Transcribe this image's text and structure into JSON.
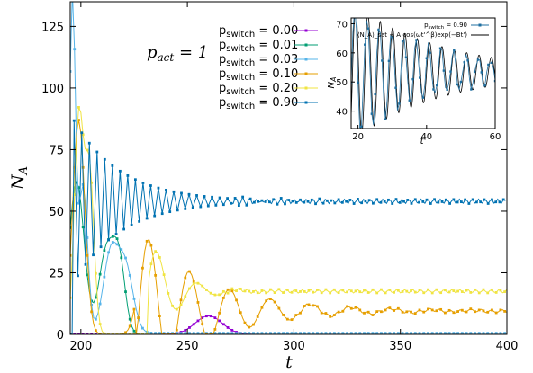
{
  "chart_data": [
    {
      "type": "line",
      "annotation": "p_act = 1",
      "xlabel": "t",
      "ylabel": "N_A",
      "xlim": [
        195,
        400
      ],
      "ylim": [
        0,
        135
      ],
      "x_ticks": [
        200,
        250,
        300,
        350,
        400
      ],
      "y_ticks": [
        0,
        25,
        50,
        75,
        100,
        125
      ],
      "legend_position": "top-center-right",
      "series": [
        {
          "name": "p_switch = 0.00",
          "color": "#9400d3",
          "p": "0.00",
          "model": {
            "type": "wave",
            "baseline": 0,
            "start": 240,
            "center": 260,
            "width": 9,
            "amp": 7.5
          },
          "x": [
            240,
            245,
            250,
            255,
            260,
            265,
            270,
            275,
            280
          ],
          "y": [
            0.2,
            1,
            3.5,
            6.5,
            7.6,
            6.5,
            3.5,
            1,
            0.2
          ]
        },
        {
          "name": "p_switch = 0.01",
          "color": "#009e73",
          "p": "0.01",
          "model": {
            "type": "peaks",
            "baseline": 0,
            "peaks": [
              [
                198,
                5,
                62
              ],
              [
                212,
                5,
                34
              ],
              [
                218,
                4,
                28
              ]
            ]
          },
          "x": [
            198,
            203,
            206,
            212,
            218,
            222,
            230
          ],
          "y": [
            62,
            4,
            0.5,
            34,
            28,
            1,
            0
          ]
        },
        {
          "name": "p_switch = 0.03",
          "color": "#56b4e9",
          "p": "0.03",
          "model": {
            "type": "peaks",
            "baseline": 0.5,
            "peaks": [
              [
                196,
                2,
                135
              ],
              [
                201,
                3,
                60
              ],
              [
                214,
                5,
                32
              ],
              [
                221,
                5,
                26
              ]
            ]
          },
          "x": [
            196,
            201,
            207,
            214,
            221,
            230,
            270,
            300,
            400
          ],
          "y": [
            135,
            60,
            1,
            32,
            26,
            2,
            0.8,
            0.6,
            0.5
          ]
        },
        {
          "name": "p_switch = 0.10",
          "color": "#e69f00",
          "p": "0.10",
          "model": {
            "type": "damped",
            "baseline": 9.5,
            "amp": 35,
            "period": 19,
            "tau": 32,
            "t0": 232,
            "start": 226,
            "peaks": [
              [
                199,
                4,
                87
              ],
              [
                231,
                5,
                43
              ]
            ]
          },
          "x": [
            199,
            213,
            231,
            242,
            252,
            262,
            271,
            290,
            310,
            400
          ],
          "y": [
            87,
            0,
            43,
            1,
            22,
            4,
            15,
            7,
            12,
            9.5
          ]
        },
        {
          "name": "p_switch = 0.20",
          "color": "#f0e442",
          "p": "0.20",
          "model": {
            "type": "damped",
            "baseline": 17.5,
            "amp": 22,
            "period": 19,
            "tau": 12,
            "t0": 236,
            "start": 232,
            "peaks": [
              [
                199,
                3,
                88
              ],
              [
                204,
                3,
                67
              ]
            ]
          },
          "x": [
            199,
            204,
            214,
            236,
            245,
            255,
            265,
            400
          ],
          "y": [
            88,
            67,
            0,
            40,
            18,
            22,
            17,
            17.5
          ]
        },
        {
          "name": "p_switch = 0.90",
          "color": "#0072b2",
          "p": "0.90",
          "model": {
            "type": "damped",
            "baseline": 54,
            "amp": 34,
            "period": 3.6,
            "tau": 22,
            "t0": 204,
            "start": 196
          },
          "x": [
            196,
            204,
            212,
            220,
            230,
            240,
            250,
            260,
            280,
            300,
            350,
            400
          ],
          "y": [
            30,
            86,
            68,
            64,
            62,
            58,
            56,
            55,
            54,
            54,
            54,
            54
          ]
        }
      ]
    },
    {
      "type": "line",
      "xlabel": "t'",
      "ylabel": "N_A",
      "xlim": [
        18,
        60
      ],
      "ylim": [
        34,
        72
      ],
      "x_ticks": [
        20,
        40,
        60
      ],
      "y_ticks": [
        40,
        50,
        60,
        70
      ],
      "legend_position": "top-right",
      "series": [
        {
          "name": "p_switch = 0.90",
          "color": "#1f6fa0",
          "style": "points",
          "model": {
            "baseline": 53.5,
            "amp": 23,
            "period": 3.6,
            "tau": 24,
            "t0": 19
          }
        },
        {
          "name": "⟨N_A⟩_sat + A cos(ωt'^β)exp(−Bt')",
          "color": "#000000",
          "style": "line",
          "model": {
            "baseline": 53.5,
            "amp": 24,
            "period": 3.6,
            "tau": 26,
            "t0": 19.3
          }
        }
      ]
    }
  ]
}
